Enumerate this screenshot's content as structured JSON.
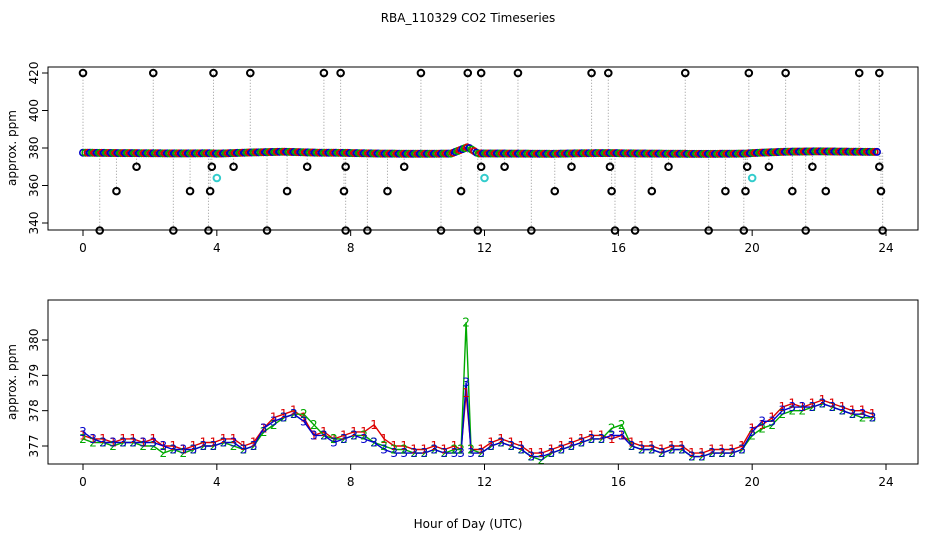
{
  "title": "RBA_110329  CO2 Timeseries",
  "xlabel": "Hour of Day (UTC)",
  "colors": {
    "red": "#dd0000",
    "green": "#00aa00",
    "blue": "#0000cc",
    "cyan": "#33cccc",
    "black": "#000000",
    "drop": "#999999"
  },
  "chart_data": [
    {
      "type": "scatter",
      "ylabel": "approx. ppm",
      "xlim": [
        0,
        24
      ],
      "ylim": [
        335,
        420
      ],
      "xticks": [
        0,
        4,
        8,
        12,
        16,
        20,
        24
      ],
      "yticks": [
        340,
        360,
        380,
        400,
        420
      ],
      "baseline": [
        [
          0,
          377.5
        ],
        [
          1,
          377.3
        ],
        [
          2,
          377.2
        ],
        [
          3,
          377.1
        ],
        [
          3.8,
          377.2
        ],
        [
          4,
          377.0
        ],
        [
          5,
          377.6
        ],
        [
          6,
          378.0
        ],
        [
          7,
          377.5
        ],
        [
          7.9,
          377.4
        ],
        [
          8,
          377.3
        ],
        [
          9,
          377.0
        ],
        [
          10,
          376.9
        ],
        [
          11,
          377.0
        ],
        [
          11.5,
          380.5
        ],
        [
          11.8,
          377.1
        ],
        [
          12,
          377.1
        ],
        [
          13,
          377.0
        ],
        [
          14,
          376.9
        ],
        [
          15,
          377.2
        ],
        [
          15.9,
          377.3
        ],
        [
          16,
          377.2
        ],
        [
          17,
          377.0
        ],
        [
          18,
          376.9
        ],
        [
          19,
          376.9
        ],
        [
          19.8,
          377.0
        ],
        [
          20,
          377.3
        ],
        [
          21,
          378.0
        ],
        [
          22,
          378.2
        ],
        [
          23,
          378.0
        ],
        [
          23.8,
          377.9
        ]
      ],
      "highs": [
        [
          0.0,
          420
        ],
        [
          2.1,
          420
        ],
        [
          3.9,
          420
        ],
        [
          5.0,
          420
        ],
        [
          7.2,
          420
        ],
        [
          7.7,
          420
        ],
        [
          10.1,
          420
        ],
        [
          11.5,
          420
        ],
        [
          11.9,
          420
        ],
        [
          13.0,
          420
        ],
        [
          15.2,
          420
        ],
        [
          15.7,
          420
        ],
        [
          18.0,
          420
        ],
        [
          19.9,
          420
        ],
        [
          21.0,
          420
        ],
        [
          23.2,
          420
        ],
        [
          23.8,
          420
        ]
      ],
      "mids": [
        [
          1.0,
          357
        ],
        [
          1.6,
          370
        ],
        [
          3.2,
          357
        ],
        [
          3.8,
          357
        ],
        [
          3.85,
          370
        ],
        [
          4.5,
          370
        ],
        [
          6.1,
          357
        ],
        [
          6.7,
          370
        ],
        [
          7.8,
          357
        ],
        [
          7.85,
          370
        ],
        [
          9.1,
          357
        ],
        [
          9.6,
          370
        ],
        [
          11.3,
          357
        ],
        [
          11.9,
          370
        ],
        [
          12.6,
          370
        ],
        [
          14.1,
          357
        ],
        [
          14.6,
          370
        ],
        [
          15.8,
          357
        ],
        [
          15.75,
          370
        ],
        [
          17.0,
          357
        ],
        [
          17.5,
          370
        ],
        [
          19.2,
          357
        ],
        [
          19.8,
          357
        ],
        [
          19.85,
          370
        ],
        [
          20.5,
          370
        ],
        [
          21.2,
          357
        ],
        [
          21.8,
          370
        ],
        [
          22.2,
          357
        ],
        [
          23.85,
          357
        ],
        [
          23.8,
          370
        ]
      ],
      "lows": [
        [
          0.5,
          336
        ],
        [
          2.7,
          336
        ],
        [
          3.75,
          336
        ],
        [
          5.5,
          336
        ],
        [
          7.85,
          336
        ],
        [
          8.5,
          336
        ],
        [
          10.7,
          336
        ],
        [
          11.8,
          336
        ],
        [
          13.4,
          336
        ],
        [
          15.9,
          336
        ],
        [
          16.5,
          336
        ],
        [
          18.7,
          336
        ],
        [
          19.75,
          336
        ],
        [
          21.6,
          336
        ],
        [
          23.9,
          336
        ]
      ],
      "cyan": [
        [
          4.0,
          364
        ],
        [
          12.0,
          364
        ],
        [
          20.0,
          364
        ]
      ]
    },
    {
      "type": "line",
      "ylabel": "approx. ppm",
      "xlim": [
        0,
        24
      ],
      "ylim": [
        376.5,
        380.9
      ],
      "xticks": [
        0,
        4,
        8,
        12,
        16,
        20,
        24
      ],
      "yticks": [
        377,
        378,
        379,
        380
      ],
      "x": [
        0,
        0.3,
        0.6,
        0.9,
        1.2,
        1.5,
        1.8,
        2.1,
        2.4,
        2.7,
        3.0,
        3.3,
        3.6,
        3.9,
        4.2,
        4.5,
        4.8,
        5.1,
        5.4,
        5.7,
        6.0,
        6.3,
        6.6,
        6.9,
        7.2,
        7.5,
        7.8,
        8.1,
        8.4,
        8.7,
        9.0,
        9.3,
        9.6,
        9.9,
        10.2,
        10.5,
        10.8,
        11.1,
        11.3,
        11.45,
        11.6,
        11.9,
        12.2,
        12.5,
        12.8,
        13.1,
        13.4,
        13.7,
        14.0,
        14.3,
        14.6,
        14.9,
        15.2,
        15.5,
        15.8,
        16.1,
        16.4,
        16.7,
        17.0,
        17.3,
        17.6,
        17.9,
        18.2,
        18.5,
        18.8,
        19.1,
        19.4,
        19.7,
        20.0,
        20.3,
        20.6,
        20.9,
        21.2,
        21.5,
        21.8,
        22.1,
        22.4,
        22.7,
        23.0,
        23.3,
        23.6
      ],
      "series": [
        {
          "name": "1",
          "values": [
            377.3,
            377.2,
            377.2,
            377.1,
            377.2,
            377.2,
            377.1,
            377.2,
            377.0,
            377.0,
            376.9,
            377.0,
            377.1,
            377.1,
            377.2,
            377.2,
            377.0,
            377.1,
            377.5,
            377.8,
            377.9,
            378.0,
            377.8,
            377.3,
            377.4,
            377.2,
            377.3,
            377.4,
            377.4,
            377.6,
            377.2,
            377.0,
            377.0,
            376.9,
            376.9,
            377.0,
            376.9,
            377.0,
            376.9,
            378.5,
            376.9,
            376.9,
            377.1,
            377.2,
            377.1,
            377.0,
            376.8,
            376.8,
            376.9,
            377.0,
            377.1,
            377.2,
            377.3,
            377.3,
            377.2,
            377.3,
            377.1,
            377.0,
            377.0,
            376.9,
            377.0,
            377.0,
            376.8,
            376.8,
            376.9,
            376.9,
            376.9,
            377.0,
            377.5,
            377.6,
            377.8,
            378.1,
            378.2,
            378.1,
            378.2,
            378.3,
            378.2,
            378.1,
            378.0,
            378.0,
            377.9
          ]
        },
        {
          "name": "2",
          "values": [
            377.2,
            377.1,
            377.1,
            377.0,
            377.1,
            377.1,
            377.0,
            377.0,
            376.8,
            376.9,
            376.8,
            376.9,
            377.0,
            377.0,
            377.1,
            377.0,
            376.9,
            377.0,
            377.4,
            377.6,
            377.8,
            377.9,
            377.9,
            377.6,
            377.3,
            377.2,
            377.2,
            377.3,
            377.3,
            377.1,
            377.0,
            376.9,
            376.9,
            376.8,
            376.8,
            376.9,
            376.8,
            376.9,
            376.9,
            380.5,
            376.9,
            376.8,
            377.0,
            377.1,
            377.0,
            376.9,
            376.7,
            376.6,
            376.8,
            376.9,
            377.0,
            377.1,
            377.2,
            377.2,
            377.5,
            377.6,
            377.0,
            376.9,
            376.9,
            376.8,
            376.9,
            376.9,
            376.7,
            376.7,
            376.8,
            376.8,
            376.8,
            376.9,
            377.3,
            377.5,
            377.6,
            377.9,
            378.0,
            378.0,
            378.1,
            378.2,
            378.1,
            378.0,
            377.9,
            377.8,
            377.8
          ]
        },
        {
          "name": "3",
          "values": [
            377.4,
            377.2,
            377.1,
            377.1,
            377.1,
            377.1,
            377.1,
            377.1,
            377.0,
            376.9,
            376.9,
            376.9,
            377.0,
            377.0,
            377.1,
            377.1,
            376.9,
            377.0,
            377.5,
            377.7,
            377.8,
            377.9,
            377.7,
            377.3,
            377.3,
            377.1,
            377.2,
            377.3,
            377.2,
            377.1,
            376.9,
            376.8,
            376.8,
            376.8,
            376.8,
            376.9,
            376.8,
            376.8,
            376.8,
            378.8,
            376.8,
            376.8,
            377.0,
            377.1,
            377.0,
            376.9,
            376.7,
            376.7,
            376.8,
            376.9,
            377.0,
            377.1,
            377.2,
            377.2,
            377.3,
            377.3,
            377.0,
            376.9,
            376.9,
            376.8,
            376.9,
            376.9,
            376.7,
            376.7,
            376.8,
            376.8,
            376.8,
            376.9,
            377.4,
            377.7,
            377.7,
            378.0,
            378.1,
            378.1,
            378.1,
            378.2,
            378.1,
            378.0,
            377.9,
            377.9,
            377.8
          ]
        }
      ]
    }
  ]
}
